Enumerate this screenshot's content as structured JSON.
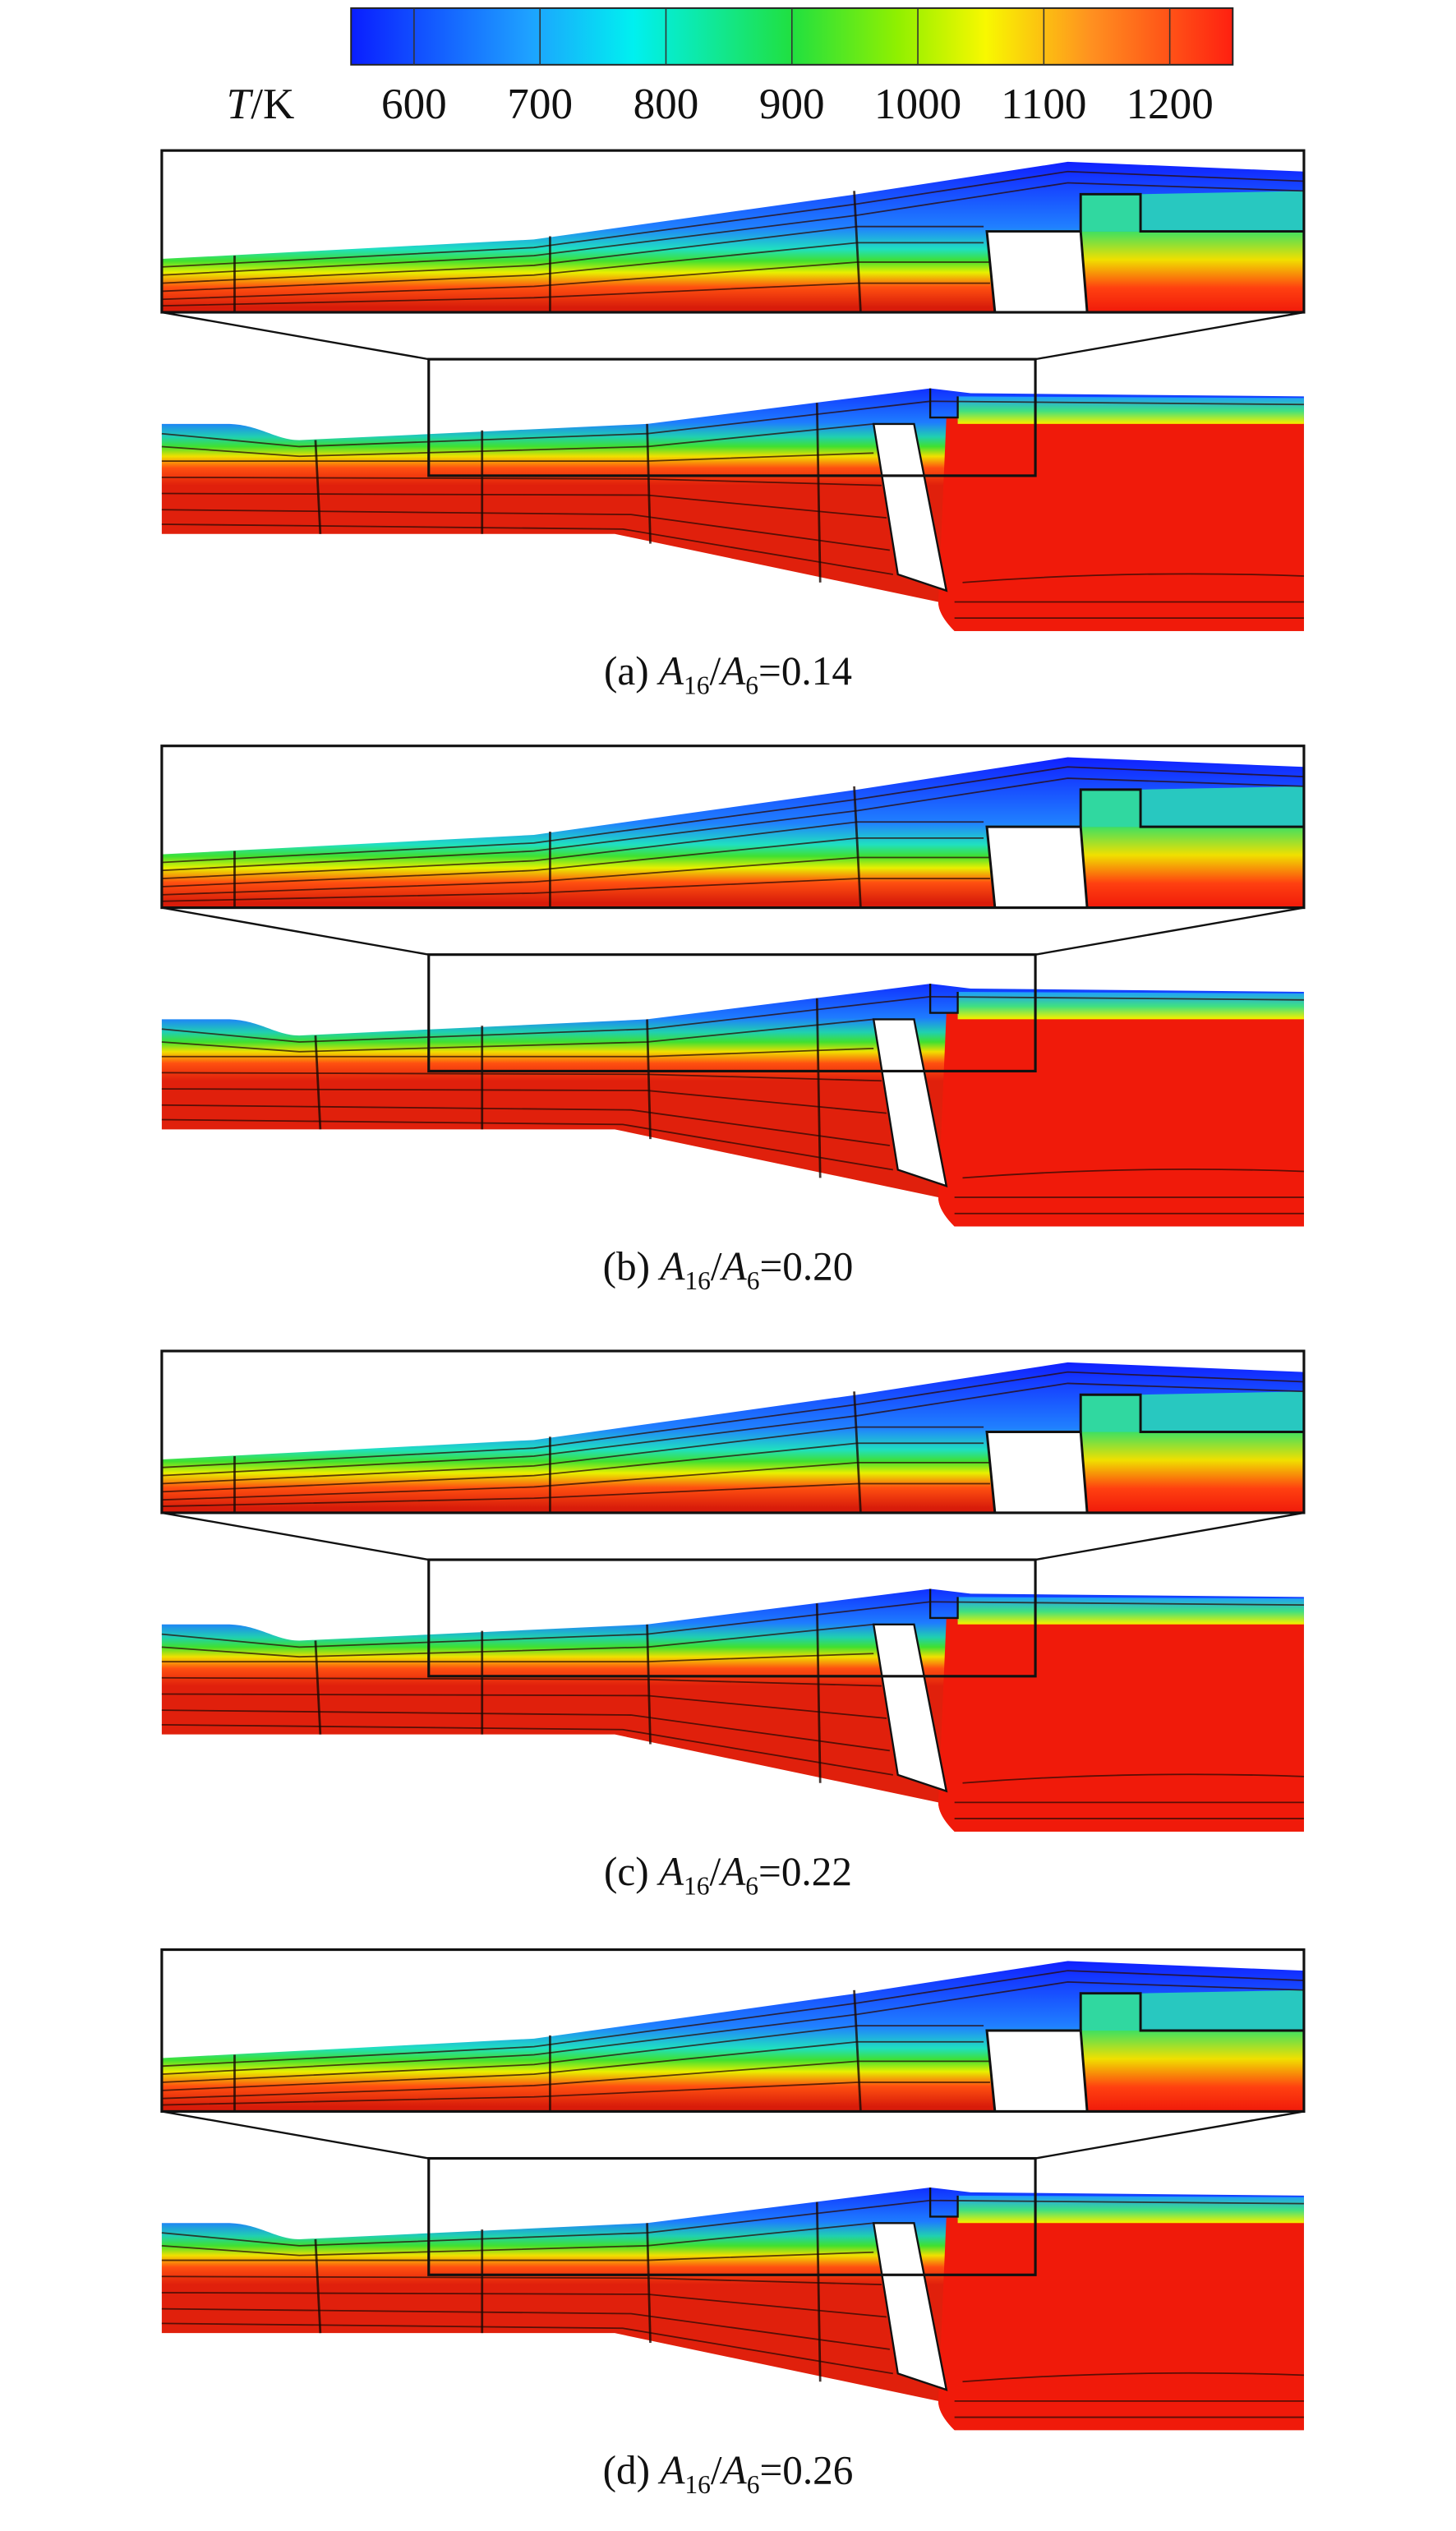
{
  "colorbar": {
    "label": [
      "T",
      "/K"
    ],
    "lim": [
      550,
      1250
    ],
    "ticks": [
      600,
      700,
      800,
      900,
      1000,
      1100,
      1200
    ]
  },
  "panels": [
    {
      "caption": [
        "(a) ",
        "A",
        "16",
        "/",
        "A",
        "6",
        "=0.14"
      ]
    },
    {
      "caption": [
        "(b) ",
        "A",
        "16",
        "/",
        "A",
        "6",
        "=0.20"
      ]
    },
    {
      "caption": [
        "(c) ",
        "A",
        "16",
        "/",
        "A",
        "6",
        "=0.22"
      ]
    },
    {
      "caption": [
        "(d) ",
        "A",
        "16",
        "/",
        "A",
        "6",
        "=0.26"
      ]
    }
  ]
}
